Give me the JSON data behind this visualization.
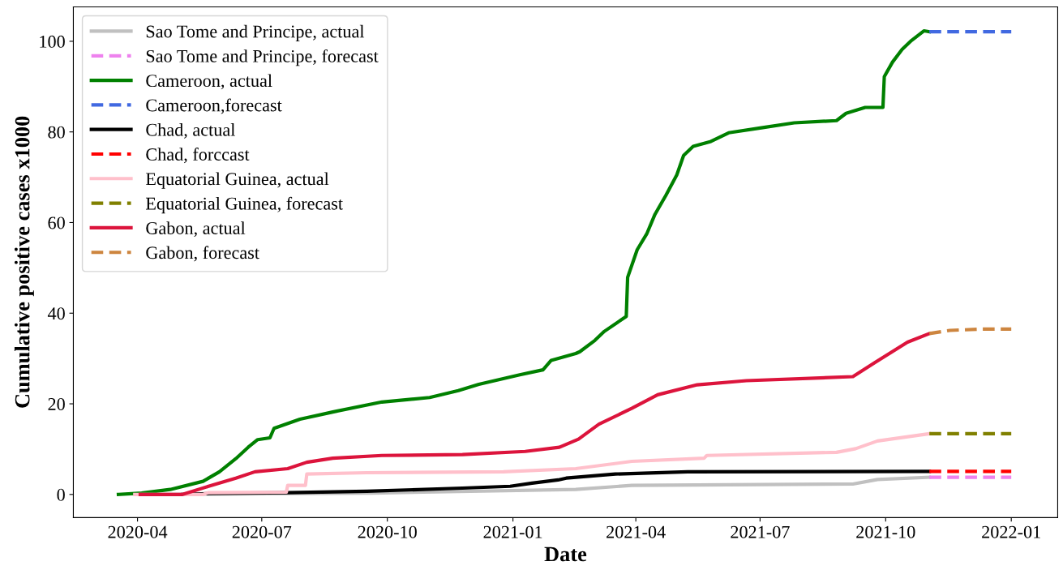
{
  "chart_data": {
    "type": "line",
    "xlabel": "Date",
    "ylabel": "Cumulative positive cases x1000",
    "xlim": [
      "2020-02-14",
      "2022-02-04"
    ],
    "ylim": [
      -5.1,
      107.6
    ],
    "xticks": [
      {
        "value": "2020-04-01",
        "label": "2020-04"
      },
      {
        "value": "2020-07-01",
        "label": "2020-07"
      },
      {
        "value": "2020-10-01",
        "label": "2020-10"
      },
      {
        "value": "2021-01-01",
        "label": "2021-01"
      },
      {
        "value": "2021-04-01",
        "label": "2021-04"
      },
      {
        "value": "2021-07-01",
        "label": "2021-07"
      },
      {
        "value": "2021-10-01",
        "label": "2021-10"
      },
      {
        "value": "2022-01-01",
        "label": "2022-01"
      }
    ],
    "yticks": [
      0,
      20,
      40,
      60,
      80,
      100
    ],
    "grid": false,
    "legend": "top left",
    "series": [
      {
        "name": "Sao Tome and Principe, actual",
        "color": "#c0c0c0",
        "line_style": "solid",
        "x": [
          "2020-04-13",
          "2020-07-20",
          "2020-09-20",
          "2021-02-16",
          "2021-03-29",
          "2021-09-07",
          "2021-09-25",
          "2021-11-02"
        ],
        "values": [
          0,
          0.2,
          0.3,
          1.1,
          2.0,
          2.3,
          3.3,
          3.8
        ]
      },
      {
        "name": "Sao Tome and Principe, forecast",
        "color": "#ee82ee",
        "line_style": "dashed",
        "x": [
          "2021-11-02",
          "2022-01-01"
        ],
        "values": [
          3.8,
          3.8
        ]
      },
      {
        "name": "Cameroon, actual",
        "color": "#008000",
        "line_style": "solid",
        "x": [
          "2020-03-18",
          "2020-04-04",
          "2020-04-25",
          "2020-05-19",
          "2020-05-31",
          "2020-06-12",
          "2020-06-21",
          "2020-06-28",
          "2020-07-07",
          "2020-07-10",
          "2020-07-29",
          "2020-08-22",
          "2020-09-27",
          "2020-11-01",
          "2020-11-22",
          "2020-12-07",
          "2021-01-06",
          "2021-01-23",
          "2021-01-29",
          "2021-02-16",
          "2021-02-19",
          "2021-03-02",
          "2021-03-09",
          "2021-03-25",
          "2021-03-26",
          "2021-04-02",
          "2021-04-09",
          "2021-04-15",
          "2021-04-23",
          "2021-05-01",
          "2021-05-06",
          "2021-05-13",
          "2021-05-26",
          "2021-06-08",
          "2021-07-02",
          "2021-07-26",
          "2021-08-26",
          "2021-09-02",
          "2021-09-16",
          "2021-09-29",
          "2021-09-30",
          "2021-10-06",
          "2021-10-13",
          "2021-10-20",
          "2021-10-29",
          "2021-11-02"
        ],
        "values": [
          0,
          0.3,
          1.1,
          2.9,
          5,
          7.9,
          10.4,
          12.1,
          12.5,
          14.6,
          16.6,
          18.2,
          20.4,
          21.4,
          22.9,
          24.3,
          26.4,
          27.5,
          29.6,
          31.1,
          31.5,
          34,
          36,
          39.3,
          47.9,
          54,
          57.5,
          61.8,
          66,
          70.5,
          74.8,
          76.8,
          77.9,
          79.8,
          80.9,
          82,
          82.5,
          84.1,
          85.4,
          85.4,
          92.2,
          95.4,
          98.2,
          100.2,
          102.3,
          102.1
        ]
      },
      {
        "name": "Cameroon,forecast",
        "color": "#4169e1",
        "line_style": "dashed",
        "x": [
          "2021-11-02",
          "2022-01-01"
        ],
        "values": [
          102.1,
          102.1
        ]
      },
      {
        "name": "Chad, actual",
        "color": "#000000",
        "line_style": "solid",
        "x": [
          "2020-05-04",
          "2020-05-23",
          "2020-07-20",
          "2020-09-16",
          "2020-11-25",
          "2020-12-30",
          "2021-01-15",
          "2021-02-03",
          "2021-02-09",
          "2021-03-17",
          "2021-05-09",
          "2021-11-02"
        ],
        "values": [
          0,
          0.2,
          0.4,
          0.7,
          1.4,
          1.8,
          2.5,
          3.2,
          3.6,
          4.5,
          5.0,
          5.1
        ]
      },
      {
        "name": "Chad, forccast",
        "color": "#ff0000",
        "line_style": "dashed",
        "x": [
          "2021-11-02",
          "2022-01-01"
        ],
        "values": [
          5.1,
          5.1
        ]
      },
      {
        "name": "Equatorial Guinea, actual",
        "color": "#ffc0cb",
        "line_style": "solid",
        "x": [
          "2020-03-30",
          "2020-05-19",
          "2020-05-23",
          "2020-07-19",
          "2020-07-20",
          "2020-08-02",
          "2020-08-03",
          "2020-09-16",
          "2020-12-25",
          "2021-02-16",
          "2021-03-29",
          "2021-05-21",
          "2021-05-23",
          "2021-08-26",
          "2021-09-09",
          "2021-09-25",
          "2021-11-02"
        ],
        "values": [
          0,
          0,
          0.4,
          0.5,
          2,
          2,
          4.5,
          4.8,
          5,
          5.7,
          7.3,
          8.0,
          8.6,
          9.3,
          10.1,
          11.8,
          13.4
        ]
      },
      {
        "name": "Equatorial Guinea, forecast",
        "color": "#808000",
        "line_style": "dashed",
        "x": [
          "2021-11-02",
          "2022-01-01"
        ],
        "values": [
          13.4,
          13.4
        ]
      },
      {
        "name": "Gabon, actual",
        "color": "#dc143c",
        "line_style": "solid",
        "x": [
          "2020-04-03",
          "2020-05-04",
          "2020-05-23",
          "2020-06-12",
          "2020-06-26",
          "2020-07-20",
          "2020-08-03",
          "2020-08-22",
          "2020-09-27",
          "2020-11-25",
          "2021-01-10",
          "2021-02-04",
          "2021-02-18",
          "2021-03-05",
          "2021-03-29",
          "2021-04-17",
          "2021-05-16",
          "2021-06-21",
          "2021-09-07",
          "2021-09-23",
          "2021-10-17",
          "2021-11-02"
        ],
        "values": [
          0,
          0,
          1.8,
          3.6,
          5,
          5.7,
          7.1,
          8,
          8.6,
          8.8,
          9.5,
          10.4,
          12.2,
          15.5,
          19,
          22,
          24.2,
          25.1,
          26,
          29.1,
          33.6,
          35.5
        ]
      },
      {
        "name": "Gabon, forecast",
        "color": "#cd853f",
        "line_style": "dashed",
        "x": [
          "2021-11-02",
          "2021-11-17",
          "2021-12-11",
          "2022-01-01"
        ],
        "values": [
          35.5,
          36.2,
          36.5,
          36.5
        ]
      }
    ]
  }
}
